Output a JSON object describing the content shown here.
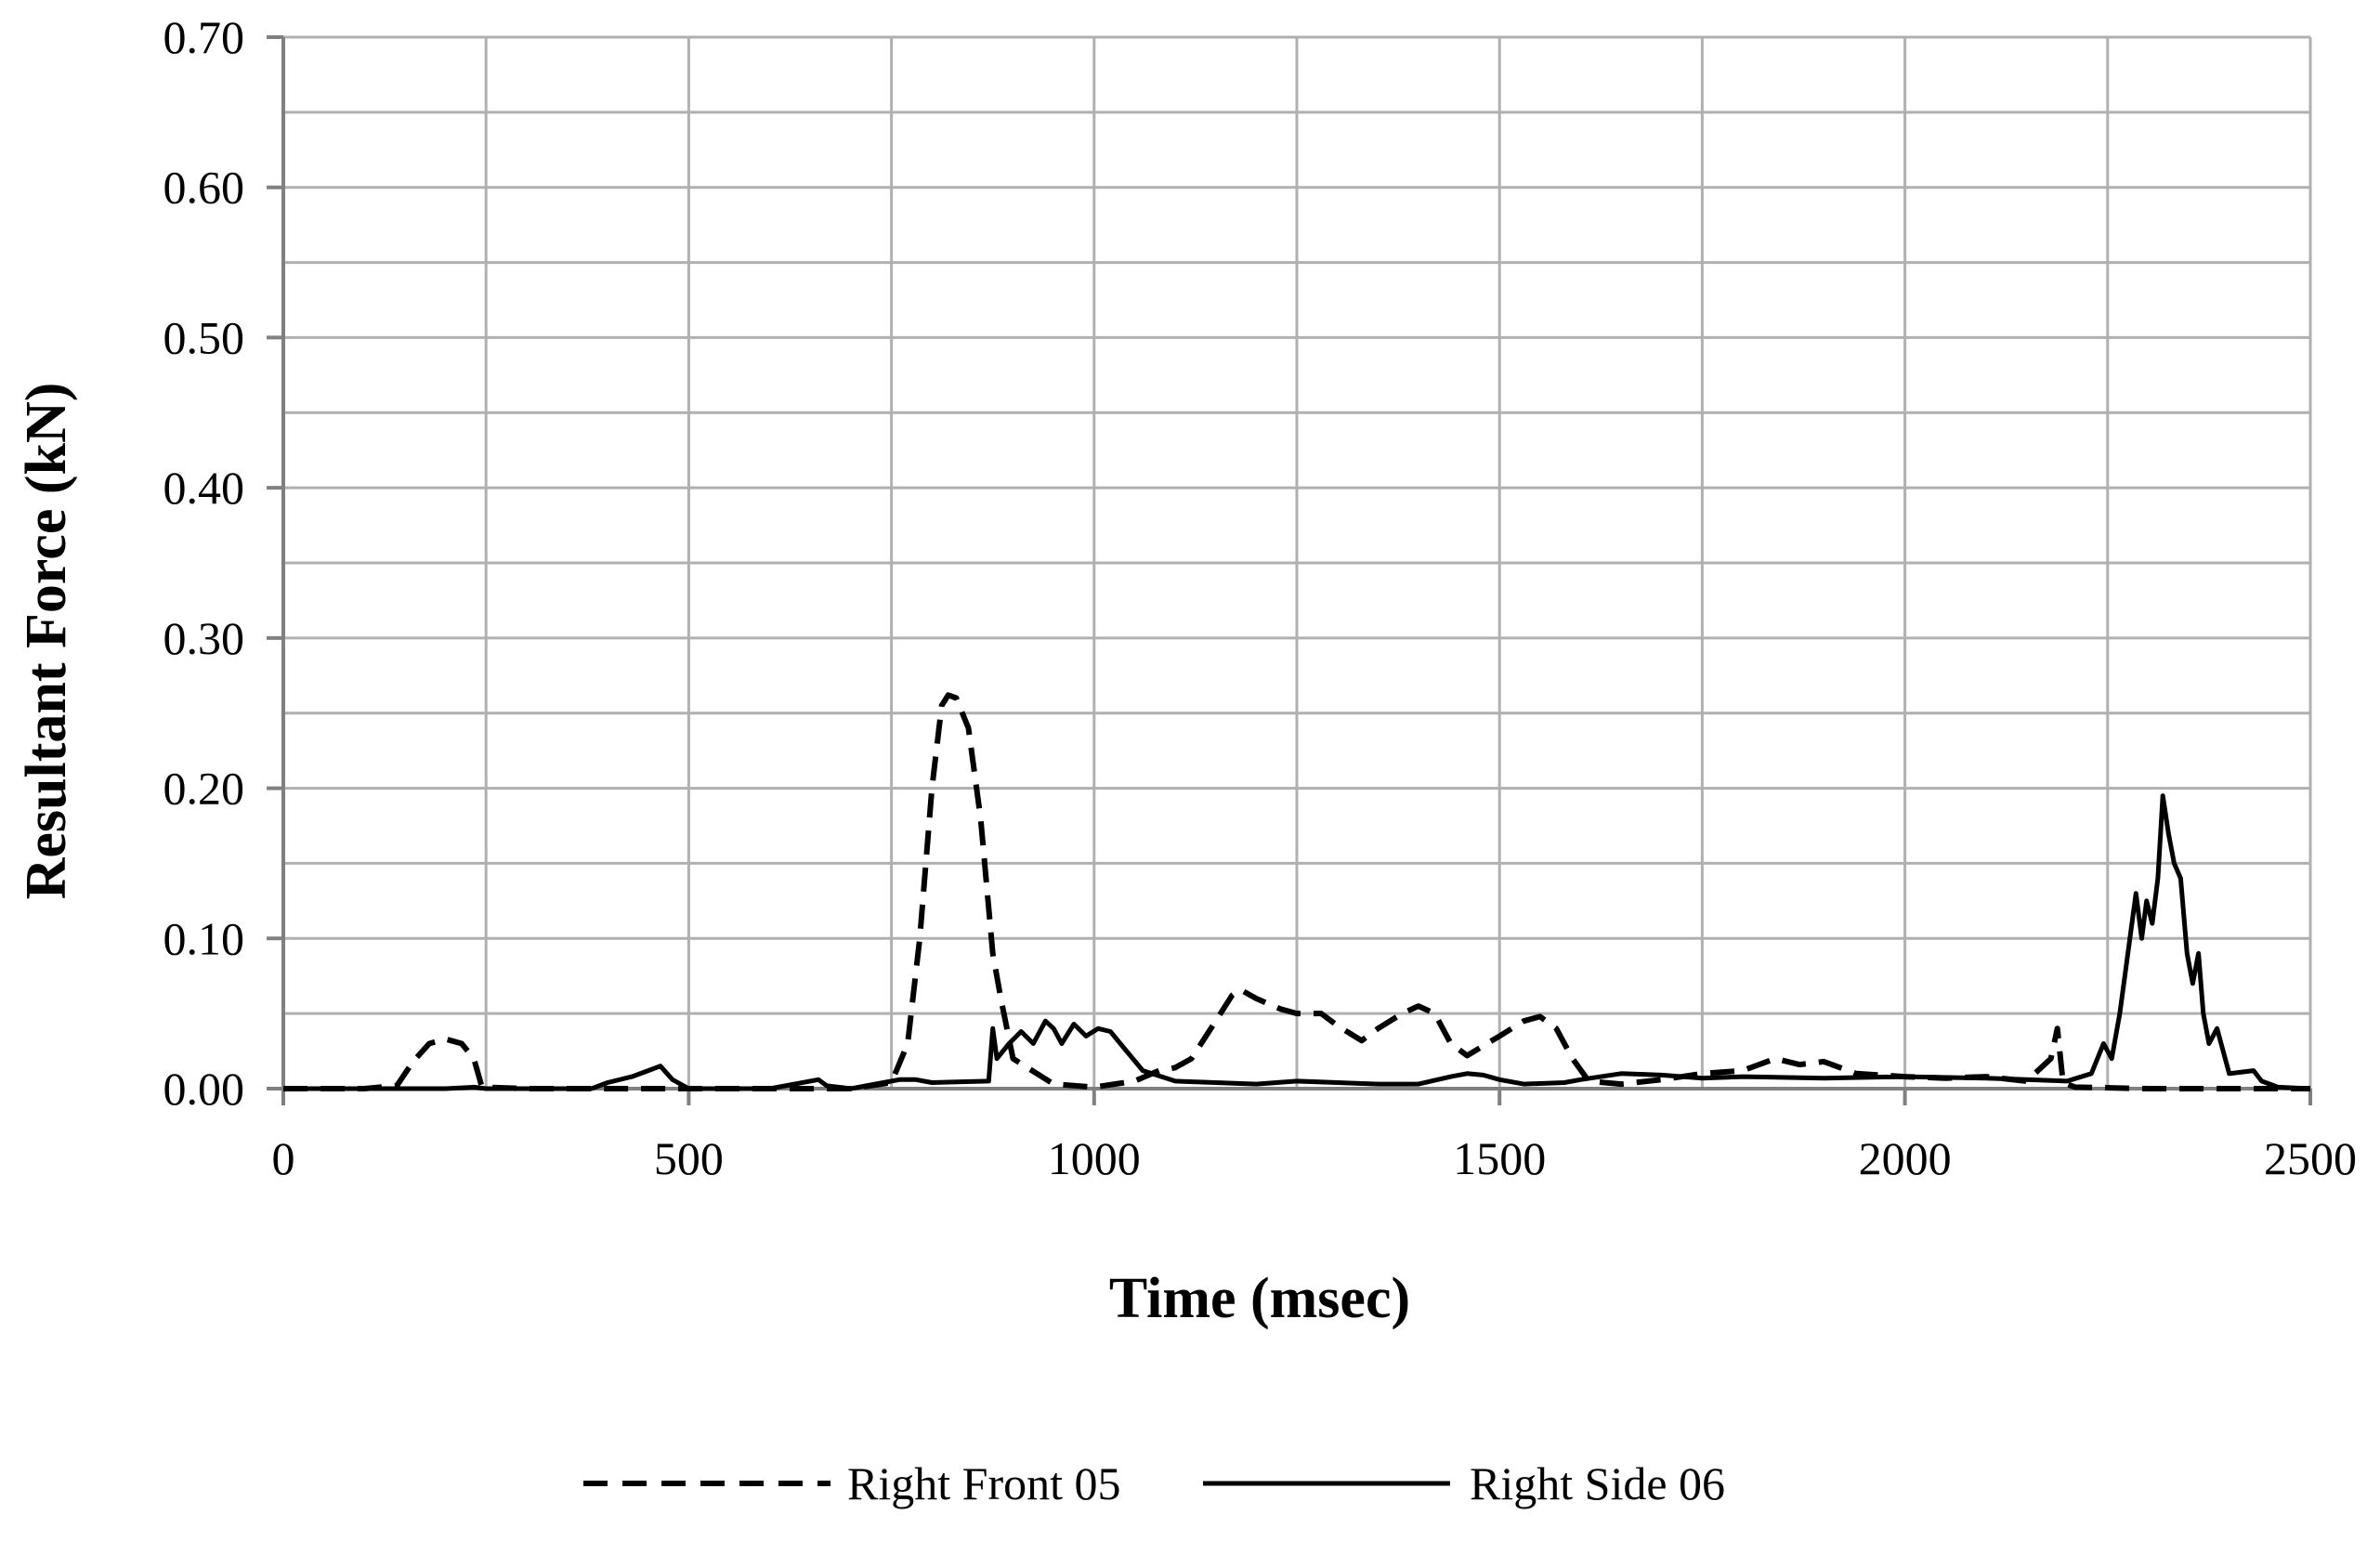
{
  "chart_data": {
    "type": "line",
    "title": "",
    "xlabel": "Time (msec)",
    "ylabel": "Resultant Force (kN)",
    "xlim": [
      0,
      2500
    ],
    "ylim": [
      0,
      0.7
    ],
    "xticks": [
      "0",
      "500",
      "1000",
      "1500",
      "2000",
      "2500"
    ],
    "yticks": [
      "0.00",
      "0.10",
      "0.20",
      "0.30",
      "0.40",
      "0.50",
      "0.60",
      "0.70"
    ],
    "grid": true,
    "legend_position": "bottom",
    "series": [
      {
        "name": "Right Front 05",
        "style": "dashed",
        "color": "#000000",
        "x": [
          0,
          100,
          140,
          160,
          180,
          200,
          220,
          235,
          245,
          300,
          400,
          500,
          600,
          700,
          750,
          770,
          785,
          800,
          812,
          820,
          830,
          845,
          860,
          875,
          885,
          900,
          950,
          1000,
          1050,
          1080,
          1100,
          1120,
          1150,
          1170,
          1180,
          1200,
          1230,
          1250,
          1280,
          1300,
          1330,
          1350,
          1380,
          1400,
          1420,
          1440,
          1460,
          1500,
          1530,
          1550,
          1570,
          1590,
          1610,
          1650,
          1700,
          1750,
          1800,
          1840,
          1870,
          1900,
          1940,
          2000,
          2050,
          2100,
          2150,
          2180,
          2188,
          2195,
          2210,
          2300,
          2400,
          2500
        ],
        "y": [
          0,
          0,
          0.002,
          0.018,
          0.03,
          0.033,
          0.03,
          0.02,
          0.001,
          0,
          0,
          0,
          0,
          0,
          0.004,
          0.03,
          0.1,
          0.2,
          0.255,
          0.262,
          0.26,
          0.24,
          0.18,
          0.09,
          0.06,
          0.02,
          0.003,
          0.001,
          0.005,
          0.012,
          0.014,
          0.02,
          0.045,
          0.062,
          0.066,
          0.06,
          0.053,
          0.05,
          0.05,
          0.042,
          0.032,
          0.04,
          0.05,
          0.055,
          0.05,
          0.03,
          0.022,
          0.035,
          0.045,
          0.048,
          0.04,
          0.02,
          0.005,
          0.003,
          0.006,
          0.01,
          0.012,
          0.02,
          0.016,
          0.018,
          0.01,
          0.008,
          0.007,
          0.008,
          0.005,
          0.02,
          0.04,
          0.004,
          0.001,
          0,
          0,
          0
        ]
      },
      {
        "name": "Right Side 06",
        "style": "solid",
        "color": "#000000",
        "x": [
          0,
          200,
          235,
          250,
          300,
          380,
          400,
          430,
          450,
          465,
          480,
          500,
          600,
          660,
          670,
          700,
          740,
          760,
          780,
          800,
          870,
          875,
          880,
          895,
          910,
          925,
          940,
          950,
          960,
          975,
          990,
          1005,
          1020,
          1040,
          1060,
          1100,
          1150,
          1200,
          1250,
          1300,
          1350,
          1400,
          1440,
          1460,
          1480,
          1500,
          1530,
          1580,
          1600,
          1650,
          1700,
          1750,
          1800,
          1900,
          2000,
          2100,
          2150,
          2200,
          2230,
          2245,
          2255,
          2265,
          2275,
          2285,
          2292,
          2298,
          2305,
          2312,
          2318,
          2325,
          2332,
          2340,
          2348,
          2355,
          2362,
          2368,
          2375,
          2385,
          2400,
          2430,
          2440,
          2460,
          2500
        ],
        "y": [
          0,
          0,
          0.001,
          0,
          0,
          0,
          0.004,
          0.008,
          0.012,
          0.015,
          0.006,
          0,
          0,
          0.006,
          0.002,
          0,
          0.004,
          0.006,
          0.006,
          0.004,
          0.005,
          0.04,
          0.02,
          0.03,
          0.038,
          0.03,
          0.045,
          0.04,
          0.03,
          0.043,
          0.035,
          0.04,
          0.038,
          0.025,
          0.012,
          0.005,
          0.004,
          0.003,
          0.005,
          0.004,
          0.003,
          0.003,
          0.008,
          0.01,
          0.009,
          0.006,
          0.003,
          0.004,
          0.006,
          0.01,
          0.009,
          0.007,
          0.008,
          0.007,
          0.008,
          0.007,
          0.006,
          0.005,
          0.01,
          0.03,
          0.02,
          0.05,
          0.09,
          0.13,
          0.1,
          0.125,
          0.11,
          0.14,
          0.195,
          0.17,
          0.15,
          0.14,
          0.09,
          0.07,
          0.09,
          0.05,
          0.03,
          0.04,
          0.01,
          0.012,
          0.005,
          0.001,
          0
        ]
      }
    ]
  }
}
